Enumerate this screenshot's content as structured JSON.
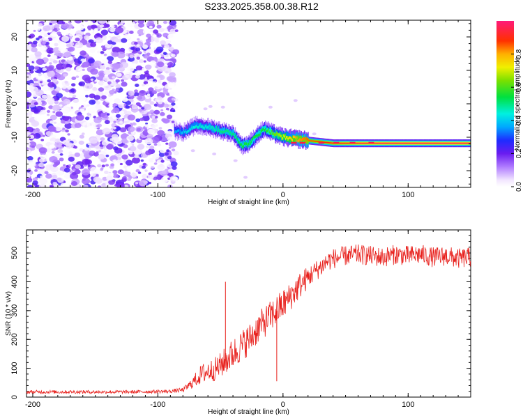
{
  "title": "S233.2025.358.00.38.R12",
  "colors": {
    "snr_line": "#e8201c",
    "frame": "#000000"
  },
  "chart_data": [
    {
      "type": "heatmap",
      "name": "spectrogram",
      "xlabel": "Height of straight line (km)",
      "ylabel": "Frequency (Hz)",
      "xlim": [
        -205,
        150
      ],
      "ylim": [
        -25,
        25
      ],
      "xticks": [
        -200,
        -100,
        0,
        100
      ],
      "yticks": [
        -20,
        -10,
        0,
        10,
        20
      ],
      "colorbar": {
        "label": "Normalized spectral amplitude",
        "range": [
          0.0,
          1.0
        ],
        "ticks": [
          "0.0",
          "0.2",
          "0.4",
          "0.6",
          "0.8"
        ],
        "tick_values": [
          0.0,
          0.2,
          0.4,
          0.6,
          0.8
        ]
      },
      "noise_region": {
        "x": [
          -205,
          -85
        ],
        "y": [
          -25,
          25
        ],
        "amplitude_max": 0.25
      },
      "signal_track": {
        "x": [
          -87,
          -80,
          -70,
          -60,
          -50,
          -40,
          -33,
          -28,
          -20,
          -15,
          -10,
          0,
          10,
          20,
          40,
          60,
          80,
          100,
          120,
          150
        ],
        "freq": [
          -8,
          -8.5,
          -6.5,
          -7,
          -8,
          -9,
          -12.5,
          -12,
          -9,
          -7.5,
          -8.5,
          -10,
          -10.5,
          -11,
          -11.8,
          -11.8,
          -11.8,
          -11.8,
          -11.8,
          -11.8
        ],
        "amplitude": [
          0.35,
          0.4,
          0.45,
          0.45,
          0.5,
          0.5,
          0.55,
          0.55,
          0.55,
          0.55,
          0.6,
          0.7,
          0.8,
          0.85,
          0.9,
          0.95,
          0.97,
          0.97,
          0.97,
          0.97
        ]
      }
    },
    {
      "type": "line",
      "name": "snr",
      "xlabel": "Height of straight line (km)",
      "ylabel": "SNR (10 * v/v)",
      "xlim": [
        -205,
        150
      ],
      "ylim": [
        0,
        580
      ],
      "xticks": [
        -200,
        -100,
        0,
        100
      ],
      "yticks": [
        0,
        100,
        200,
        300,
        400,
        500
      ],
      "series": [
        {
          "name": "SNR",
          "x": [
            -205,
            -180,
            -150,
            -120,
            -90,
            -80,
            -75,
            -70,
            -65,
            -60,
            -55,
            -50,
            -45,
            -40,
            -35,
            -30,
            -25,
            -20,
            -15,
            -10,
            -5,
            0,
            5,
            10,
            15,
            20,
            25,
            30,
            35,
            40,
            50,
            60,
            70,
            80,
            90,
            100,
            110,
            120,
            130,
            140,
            150
          ],
          "values": [
            18,
            18,
            18,
            18,
            20,
            25,
            40,
            60,
            80,
            90,
            95,
            110,
            130,
            150,
            170,
            190,
            210,
            240,
            260,
            280,
            300,
            320,
            345,
            370,
            395,
            415,
            435,
            450,
            470,
            480,
            490,
            495,
            490,
            485,
            495,
            490,
            495,
            485,
            490,
            480,
            485
          ],
          "spread": [
            6,
            6,
            6,
            6,
            6,
            8,
            15,
            25,
            35,
            40,
            40,
            45,
            50,
            55,
            55,
            55,
            55,
            55,
            55,
            55,
            55,
            55,
            50,
            50,
            45,
            40,
            35,
            35,
            35,
            35,
            35,
            35,
            35,
            35,
            35,
            35,
            35,
            35,
            35,
            35,
            35
          ]
        }
      ],
      "annotations": [
        {
          "x": -46,
          "value": 400,
          "label": "spike"
        },
        {
          "x": -5,
          "value": 55,
          "label": "dip"
        }
      ]
    }
  ]
}
